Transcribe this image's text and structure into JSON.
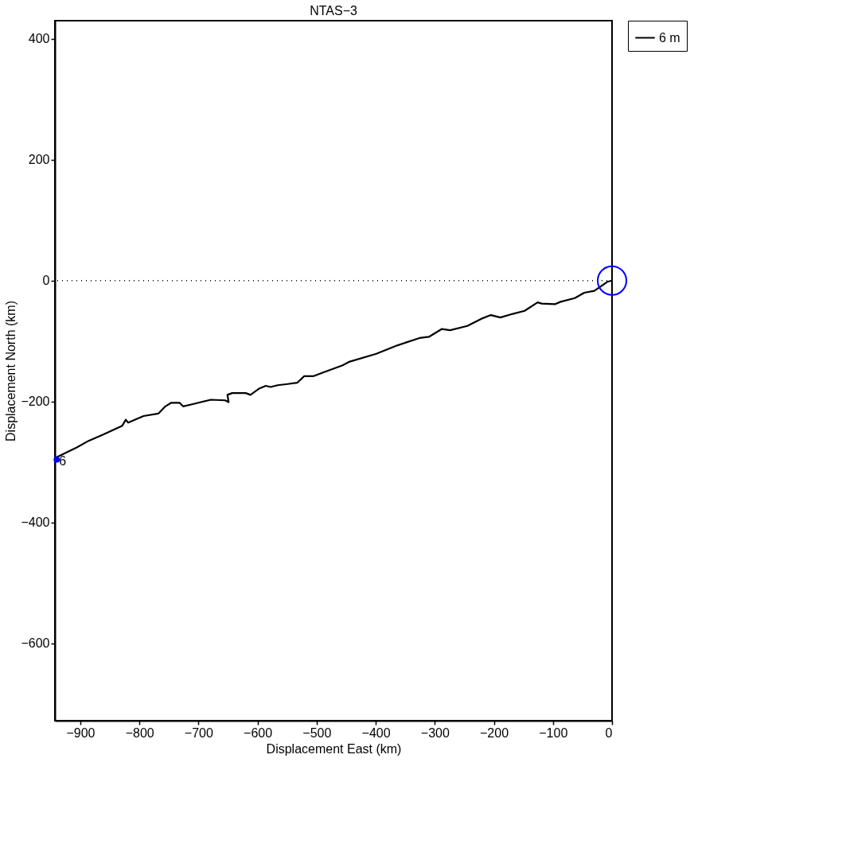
{
  "chart_data": {
    "type": "line",
    "title": "NTAS−3",
    "xlabel": "Displacement East (km)",
    "ylabel": "Displacement North (km)",
    "xlim": [
      -943,
      0
    ],
    "ylim": [
      -728,
      430
    ],
    "xticks": [
      -900,
      -800,
      -700,
      -600,
      -500,
      -400,
      -300,
      -200,
      -100,
      0
    ],
    "yticks": [
      -600,
      -400,
      -200,
      0,
      200,
      400
    ],
    "grid": false,
    "legend": "right",
    "line_style": "solid",
    "series": [
      {
        "name": "6 m",
        "color": "#000000",
        "marker": "none",
        "x": [
          -940,
          -906,
          -886,
          -862,
          -829,
          -823,
          -819,
          -793,
          -768,
          -756,
          -746,
          -732,
          -726,
          -708,
          -679,
          -655,
          -649,
          -651,
          -643,
          -620,
          -612,
          -598,
          -586,
          -578,
          -566,
          -549,
          -533,
          -521,
          -505,
          -489,
          -456,
          -444,
          -399,
          -363,
          -326,
          -310,
          -288,
          -274,
          -245,
          -221,
          -205,
          -189,
          -168,
          -148,
          -126,
          -119,
          -97,
          -87,
          -63,
          -47,
          -30,
          -8,
          0
        ],
        "values": [
          -292,
          -276,
          -265,
          -255,
          -240,
          -230,
          -235,
          -224,
          -220,
          -208,
          -202,
          -202,
          -208,
          -204,
          -197,
          -198,
          -201,
          -189,
          -186,
          -186,
          -189,
          -179,
          -174,
          -176,
          -173,
          -171,
          -169,
          -158,
          -158,
          -152,
          -140,
          -134,
          -121,
          -107,
          -95,
          -93,
          -80,
          -82,
          -75,
          -63,
          -57,
          -61,
          -55,
          -50,
          -36,
          -38,
          -39,
          -35,
          -29,
          -20,
          -17,
          -2,
          0
        ]
      },
      {
        "type": "scatter",
        "color": "#0000ff",
        "marker": "circle",
        "x": [
          -940
        ],
        "values": [
          -296
        ]
      },
      {
        "type": "scatter",
        "color": "#0000ff",
        "marker": "circle",
        "x": [
          0
        ],
        "values": [
          0
        ]
      }
    ],
    "ref_lines": [
      {
        "axis": "y",
        "value": 0,
        "color": "#000000",
        "line_style": "dotted"
      }
    ],
    "annotations": [
      {
        "text": "6",
        "x": -940,
        "y": -296
      }
    ]
  }
}
